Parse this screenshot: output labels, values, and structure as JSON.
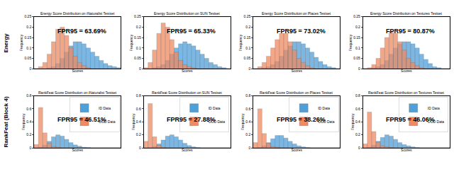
{
  "row_labels": [
    "Energy",
    "RankFeat (Block 4)"
  ],
  "chart_data": [
    {
      "type": "histogram",
      "title": "Energy Score Distribution on iNaturalist Testset",
      "x_label": "Scores",
      "y_label": "Frequency",
      "bins": [
        0,
        1,
        2,
        3,
        4,
        5,
        6,
        7,
        8,
        9,
        10,
        11,
        12,
        13,
        14,
        15,
        16,
        17,
        18,
        19,
        20
      ],
      "xlim": [
        0,
        20
      ],
      "ylim": [
        0,
        0.25
      ],
      "yticks": [
        0,
        0.05,
        0.1,
        0.15,
        0.2,
        0.25
      ],
      "tick_labels": "y",
      "annotation": "FPR95 = 63.69%",
      "series": [
        {
          "name": "ID Data",
          "color": "#4f9fd8",
          "values": [
            0,
            0,
            0,
            0.005,
            0.01,
            0.025,
            0.05,
            0.08,
            0.11,
            0.13,
            0.13,
            0.12,
            0.1,
            0.08,
            0.06,
            0.04,
            0.025,
            0.015,
            0.01,
            0.005
          ]
        },
        {
          "name": "OOD Data",
          "color": "#ef8a62",
          "values": [
            0,
            0.01,
            0.03,
            0.07,
            0.13,
            0.19,
            0.2,
            0.16,
            0.1,
            0.06,
            0.03,
            0.015,
            0.005,
            0,
            0,
            0,
            0,
            0,
            0,
            0
          ]
        }
      ]
    },
    {
      "type": "histogram",
      "title": "Energy Score Distribution on SUN Testset",
      "x_label": "Scores",
      "y_label": "Frequency",
      "bins": [
        0,
        1,
        2,
        3,
        4,
        5,
        6,
        7,
        8,
        9,
        10,
        11,
        12,
        13,
        14,
        15,
        16,
        17,
        18,
        19,
        20
      ],
      "xlim": [
        0,
        20
      ],
      "ylim": [
        0,
        0.25
      ],
      "yticks": [
        0,
        0.05,
        0.1,
        0.15,
        0.2,
        0.25
      ],
      "tick_labels": "y",
      "annotation": "FPR95 = 65.33%",
      "series": [
        {
          "name": "ID Data",
          "color": "#4f9fd8",
          "values": [
            0,
            0,
            0.005,
            0.01,
            0.02,
            0.04,
            0.07,
            0.1,
            0.12,
            0.13,
            0.12,
            0.11,
            0.09,
            0.07,
            0.05,
            0.03,
            0.02,
            0.01,
            0.005,
            0
          ]
        },
        {
          "name": "OOD Data",
          "color": "#ef8a62",
          "values": [
            0.005,
            0.03,
            0.09,
            0.17,
            0.22,
            0.2,
            0.14,
            0.08,
            0.04,
            0.02,
            0.01,
            0.005,
            0,
            0,
            0,
            0,
            0,
            0,
            0,
            0
          ]
        }
      ]
    },
    {
      "type": "histogram",
      "title": "Energy Score Distribution on Places Testset",
      "x_label": "Scores",
      "y_label": "Frequency",
      "bins": [
        0,
        1,
        2,
        3,
        4,
        5,
        6,
        7,
        8,
        9,
        10,
        11,
        12,
        13,
        14,
        15,
        16,
        17,
        18,
        19,
        20
      ],
      "xlim": [
        0,
        20
      ],
      "ylim": [
        0,
        0.25
      ],
      "yticks": [
        0,
        0.05,
        0.1,
        0.15,
        0.2,
        0.25
      ],
      "tick_labels": "y",
      "annotation": "FPR95 = 73.02%",
      "series": [
        {
          "name": "ID Data",
          "color": "#4f9fd8",
          "values": [
            0,
            0,
            0.005,
            0.01,
            0.02,
            0.035,
            0.06,
            0.09,
            0.11,
            0.13,
            0.13,
            0.12,
            0.1,
            0.08,
            0.055,
            0.035,
            0.02,
            0.01,
            0.005,
            0
          ]
        },
        {
          "name": "OOD Data",
          "color": "#ef8a62",
          "values": [
            0,
            0.01,
            0.03,
            0.06,
            0.1,
            0.14,
            0.17,
            0.17,
            0.13,
            0.09,
            0.05,
            0.03,
            0.015,
            0.005,
            0,
            0,
            0,
            0,
            0,
            0
          ]
        }
      ]
    },
    {
      "type": "histogram",
      "title": "Energy Score Distribution on Textures Testset",
      "x_label": "Scores",
      "y_label": "Frequency",
      "bins": [
        0,
        1,
        2,
        3,
        4,
        5,
        6,
        7,
        8,
        9,
        10,
        11,
        12,
        13,
        14,
        15,
        16,
        17,
        18,
        19,
        20
      ],
      "xlim": [
        0,
        20
      ],
      "ylim": [
        0,
        0.25
      ],
      "yticks": [
        0,
        0.05,
        0.1,
        0.15,
        0.2,
        0.25
      ],
      "tick_labels": "y",
      "annotation": "FPR95 = 80.87%",
      "series": [
        {
          "name": "ID Data",
          "color": "#4f9fd8",
          "values": [
            0,
            0,
            0.005,
            0.01,
            0.02,
            0.04,
            0.07,
            0.1,
            0.12,
            0.13,
            0.13,
            0.12,
            0.1,
            0.07,
            0.045,
            0.025,
            0.01,
            0.005,
            0,
            0
          ]
        },
        {
          "name": "OOD Data",
          "color": "#ef8a62",
          "values": [
            0,
            0.005,
            0.02,
            0.05,
            0.1,
            0.15,
            0.18,
            0.17,
            0.13,
            0.09,
            0.05,
            0.03,
            0.015,
            0.005,
            0,
            0,
            0,
            0,
            0,
            0
          ]
        }
      ]
    },
    {
      "type": "histogram",
      "title": "RankFeat Score Distribution on iNaturalist Testset",
      "x_label": "Scores",
      "y_label": "Frequency",
      "bins": [
        0,
        1,
        2,
        3,
        4,
        5,
        6,
        7,
        8,
        9,
        10,
        11,
        12,
        13,
        14,
        15,
        16,
        17,
        18,
        19,
        20
      ],
      "xlim": [
        0,
        20
      ],
      "ylim": [
        0,
        0.8
      ],
      "yticks": [
        0,
        0.2,
        0.4,
        0.6,
        0.8
      ],
      "tick_labels": "y",
      "annotation": "FPR95 = 46.51%",
      "series": [
        {
          "name": "ID Data",
          "color": "#4f9fd8",
          "values": [
            0,
            0.01,
            0.04,
            0.1,
            0.17,
            0.2,
            0.18,
            0.13,
            0.08,
            0.045,
            0.025,
            0.01,
            0.005,
            0,
            0,
            0,
            0,
            0,
            0,
            0
          ]
        },
        {
          "name": "OOD Data",
          "color": "#ef8a62",
          "values": [
            0.05,
            0.62,
            0.23,
            0.07,
            0.02,
            0.01,
            0,
            0,
            0,
            0,
            0,
            0,
            0,
            0,
            0,
            0,
            0,
            0,
            0,
            0
          ]
        }
      ]
    },
    {
      "type": "histogram",
      "title": "RankFeat Score Distribution on SUN Testset",
      "x_label": "Scores",
      "y_label": "Frequency",
      "bins": [
        0,
        1,
        2,
        3,
        4,
        5,
        6,
        7,
        8,
        9,
        10,
        11,
        12,
        13,
        14,
        15,
        16,
        17,
        18,
        19,
        20
      ],
      "xlim": [
        0,
        20
      ],
      "ylim": [
        0,
        0.8
      ],
      "yticks": [
        0,
        0.2,
        0.4,
        0.6,
        0.8
      ],
      "tick_labels": "y",
      "annotation": "FPR95 = 27.88%",
      "series": [
        {
          "name": "ID Data",
          "color": "#4f9fd8",
          "values": [
            0,
            0.005,
            0.02,
            0.06,
            0.12,
            0.18,
            0.2,
            0.17,
            0.12,
            0.07,
            0.035,
            0.015,
            0.005,
            0,
            0,
            0,
            0,
            0,
            0,
            0
          ]
        },
        {
          "name": "OOD Data",
          "color": "#ef8a62",
          "values": [
            0.1,
            0.68,
            0.17,
            0.04,
            0.01,
            0,
            0,
            0,
            0,
            0,
            0,
            0,
            0,
            0,
            0,
            0,
            0,
            0,
            0,
            0
          ]
        }
      ]
    },
    {
      "type": "histogram",
      "title": "RankFeat Score Distribution on Places Testset",
      "x_label": "Scores",
      "y_label": "Frequency",
      "bins": [
        0,
        1,
        2,
        3,
        4,
        5,
        6,
        7,
        8,
        9,
        10,
        11,
        12,
        13,
        14,
        15,
        16,
        17,
        18,
        19,
        20
      ],
      "xlim": [
        0,
        20
      ],
      "ylim": [
        0,
        0.8
      ],
      "yticks": [
        0,
        0.2,
        0.4,
        0.6,
        0.8
      ],
      "tick_labels": "y",
      "annotation": "FPR95 = 38.26%",
      "series": [
        {
          "name": "ID Data",
          "color": "#4f9fd8",
          "values": [
            0,
            0.005,
            0.03,
            0.08,
            0.14,
            0.19,
            0.19,
            0.15,
            0.1,
            0.06,
            0.03,
            0.015,
            0.005,
            0,
            0,
            0,
            0,
            0,
            0,
            0
          ]
        },
        {
          "name": "OOD Data",
          "color": "#ef8a62",
          "values": [
            0.08,
            0.6,
            0.22,
            0.07,
            0.02,
            0.01,
            0,
            0,
            0,
            0,
            0,
            0,
            0,
            0,
            0,
            0,
            0,
            0,
            0,
            0
          ]
        }
      ]
    },
    {
      "type": "histogram",
      "title": "RankFeat Score Distribution on Textures Testset",
      "x_label": "Scores",
      "y_label": "Frequency",
      "bins": [
        0,
        1,
        2,
        3,
        4,
        5,
        6,
        7,
        8,
        9,
        10,
        11,
        12,
        13,
        14,
        15,
        16,
        17,
        18,
        19,
        20
      ],
      "xlim": [
        0,
        20
      ],
      "ylim": [
        0,
        0.8
      ],
      "yticks": [
        0,
        0.2,
        0.4,
        0.6,
        0.8
      ],
      "tick_labels": "y",
      "annotation": "FPR95 = 46.06%",
      "series": [
        {
          "name": "ID Data",
          "color": "#4f9fd8",
          "values": [
            0,
            0.01,
            0.04,
            0.1,
            0.16,
            0.2,
            0.18,
            0.13,
            0.08,
            0.05,
            0.03,
            0.015,
            0.005,
            0,
            0,
            0,
            0,
            0,
            0,
            0
          ]
        },
        {
          "name": "OOD Data",
          "color": "#ef8a62",
          "values": [
            0.06,
            0.55,
            0.25,
            0.09,
            0.03,
            0.015,
            0.005,
            0,
            0,
            0,
            0,
            0,
            0,
            0,
            0,
            0,
            0,
            0,
            0,
            0
          ]
        }
      ]
    }
  ]
}
